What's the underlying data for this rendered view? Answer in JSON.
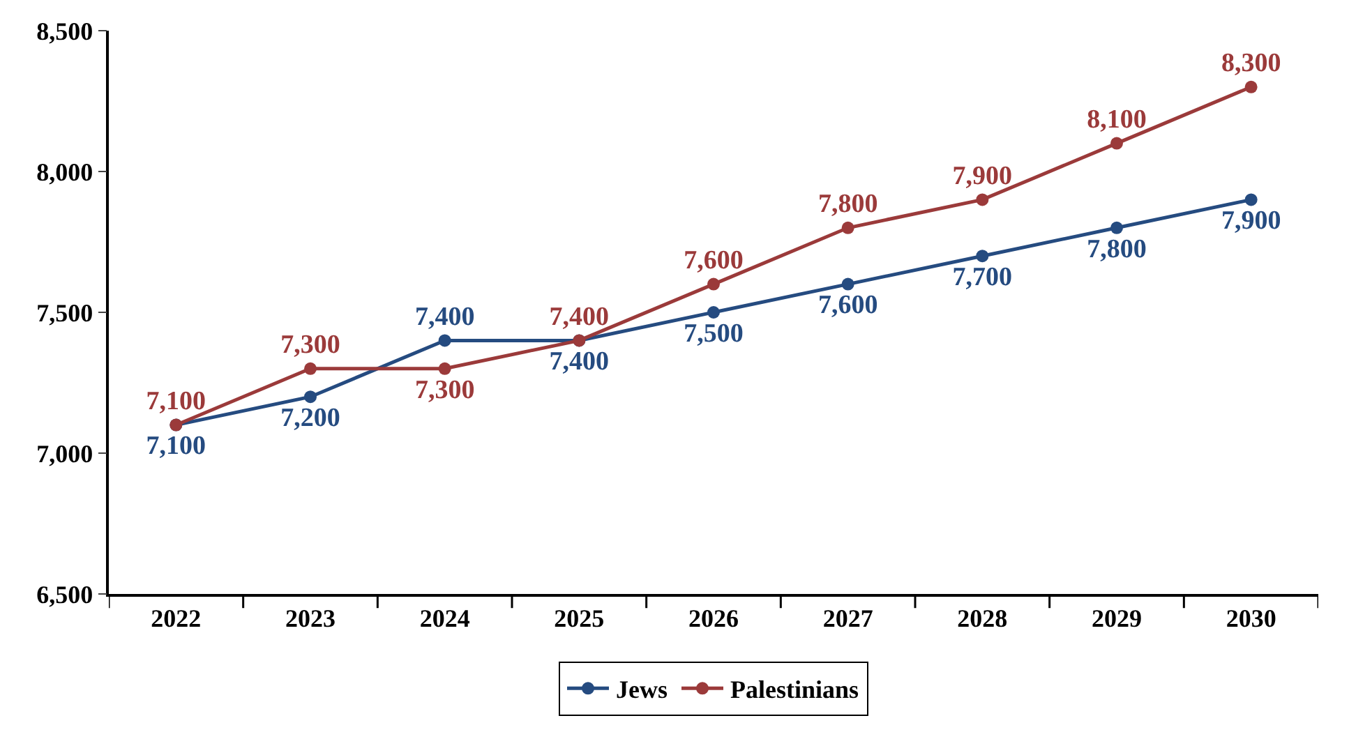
{
  "chart_data": {
    "type": "line",
    "categories": [
      "2022",
      "2023",
      "2024",
      "2025",
      "2026",
      "2027",
      "2028",
      "2029",
      "2030"
    ],
    "series": [
      {
        "name": "Jews",
        "color": "#254b80",
        "values": [
          7100,
          7200,
          7400,
          7400,
          7500,
          7600,
          7700,
          7800,
          7900
        ],
        "value_labels": [
          "7,100",
          "7,200",
          "7,400",
          "7,400",
          "7,500",
          "7,600",
          "7,700",
          "7,800",
          "7,900"
        ]
      },
      {
        "name": "Palestinians",
        "color": "#9b3a3a",
        "values": [
          7100,
          7300,
          7300,
          7400,
          7600,
          7800,
          7900,
          8100,
          8300
        ],
        "value_labels": [
          "7,100",
          "7,300",
          "7,300",
          "7,400",
          "7,600",
          "7,800",
          "7,900",
          "8,100",
          "8,300"
        ]
      }
    ],
    "ylim": [
      6500,
      8500
    ],
    "yticks": [
      {
        "value": 6500,
        "label": "6,500"
      },
      {
        "value": 7000,
        "label": "7,000"
      },
      {
        "value": 7500,
        "label": "7,500"
      },
      {
        "value": 8000,
        "label": "8,000"
      },
      {
        "value": 8500,
        "label": "8,500"
      }
    ],
    "legend": "bottom",
    "marker": "circle",
    "line_style": "solid"
  }
}
